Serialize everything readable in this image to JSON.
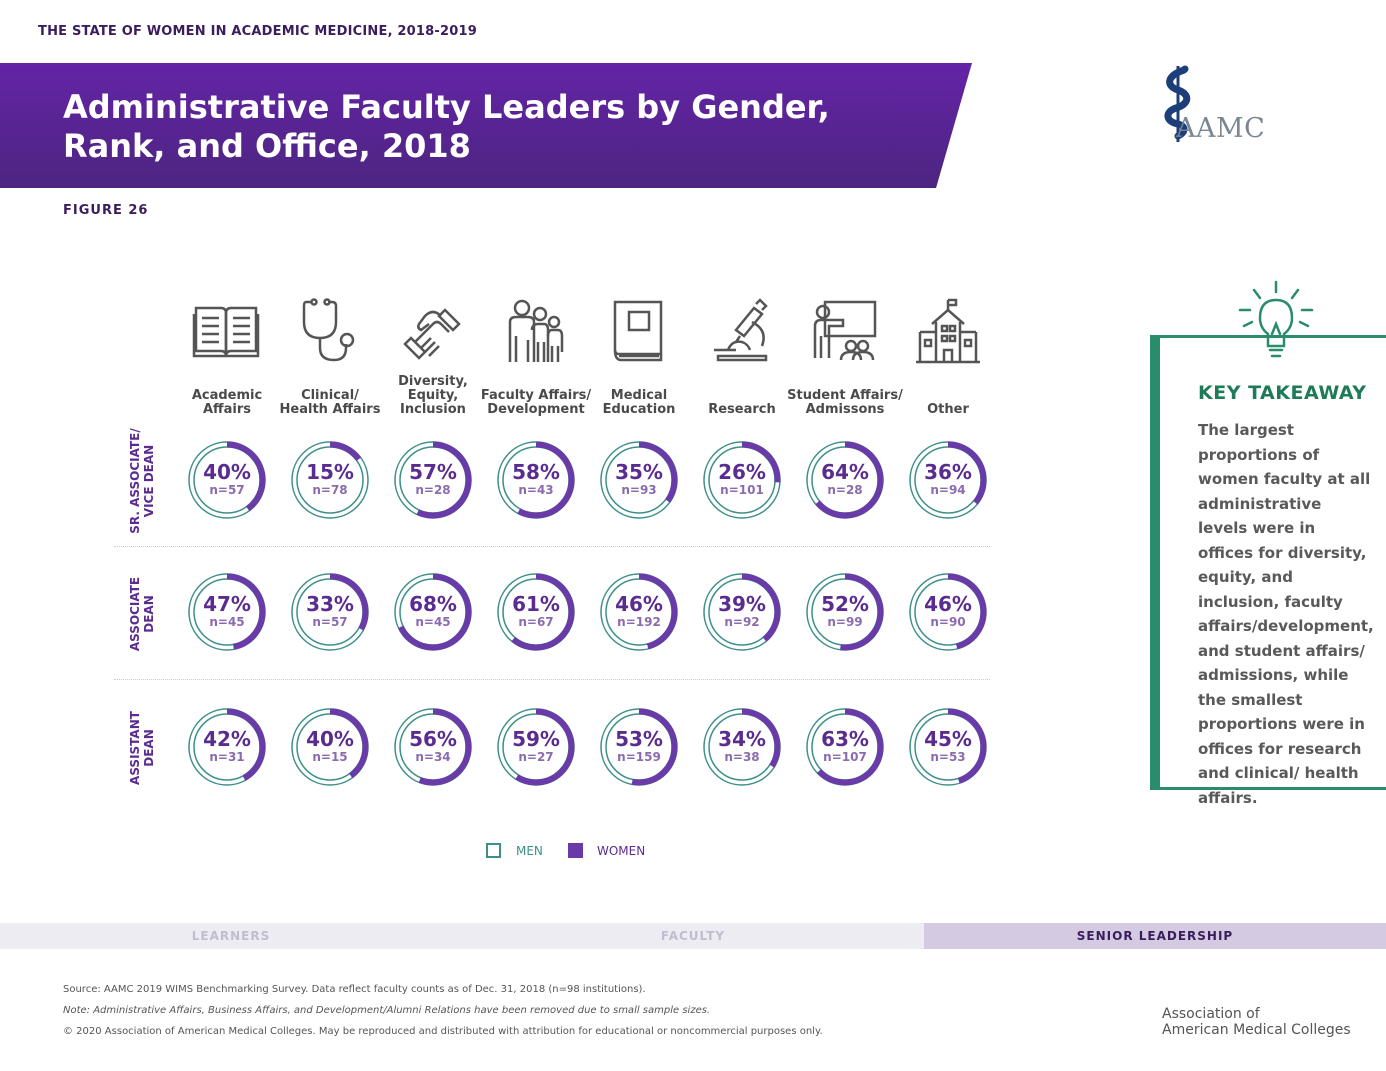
{
  "header": {
    "report_title": "THE STATE OF WOMEN IN ACADEMIC MEDICINE, 2018-2019",
    "banner_title": "Administrative Faculty Leaders by Gender, Rank, and Office, 2018",
    "figure_label": "FIGURE 26",
    "logo_text": "AAMC"
  },
  "colors": {
    "men": "#3e8f8a",
    "women": "#6a3aa8",
    "banner": "#5a24a0",
    "accent_green": "#1e7a57"
  },
  "chart_data": {
    "type": "donut-grid",
    "columns": [
      {
        "label": "Academic\nAffairs",
        "icon": "book-icon"
      },
      {
        "label": "Clinical/\nHealth Affairs",
        "icon": "stethoscope-icon"
      },
      {
        "label": "Diversity,\nEquity,\nInclusion",
        "icon": "handshake-icon"
      },
      {
        "label": "Faculty Affairs/\nDevelopment",
        "icon": "people-group-icon"
      },
      {
        "label": "Medical\nEducation",
        "icon": "textbook-icon"
      },
      {
        "label": "Research",
        "icon": "microscope-icon"
      },
      {
        "label": "Student Affairs/\nAdmissons",
        "icon": "presentation-icon"
      },
      {
        "label": "Other",
        "icon": "building-icon"
      }
    ],
    "rows": [
      {
        "label": "SR. ASSOCIATE/\nVICE DEAN",
        "women_pct": [
          40,
          15,
          57,
          58,
          35,
          26,
          64,
          36
        ],
        "pct_labels": [
          "40%",
          "15%",
          "57%",
          "58%",
          "35%",
          "26%",
          "64%",
          "36%"
        ],
        "n_labels": [
          "n=57",
          "n=78",
          "n=28",
          "n=43",
          "n=93",
          "n=101",
          "n=28",
          "n=94"
        ]
      },
      {
        "label": "ASSOCIATE\nDEAN",
        "women_pct": [
          47,
          33,
          68,
          61,
          46,
          39,
          52,
          46
        ],
        "pct_labels": [
          "47%",
          "33%",
          "68%",
          "61%",
          "46%",
          "39%",
          "52%",
          "46%"
        ],
        "n_labels": [
          "n=45",
          "n=57",
          "n=45",
          "n=67",
          "n=192",
          "n=92",
          "n=99",
          "n=90"
        ]
      },
      {
        "label": "ASSISTANT\nDEAN",
        "women_pct": [
          42,
          40,
          56,
          59,
          53,
          34,
          63,
          45
        ],
        "pct_labels": [
          "42%",
          "40%",
          "56%",
          "59%",
          "53%",
          "34%",
          "63%",
          "45%"
        ],
        "n_labels": [
          "n=31",
          "n=15",
          "n=34",
          "n=27",
          "n=159",
          "n=38",
          "n=107",
          "n=53"
        ]
      }
    ],
    "legend": [
      {
        "label": "MEN",
        "color": "#3e8f8a"
      },
      {
        "label": "WOMEN",
        "color": "#6a3aa8"
      }
    ]
  },
  "takeaway": {
    "title": "KEY TAKEAWAY",
    "body": "The largest proportions of women faculty at all administrative levels were in offices for diversity, equity, and inclusion, faculty affairs/development, and student affairs/ admissions, while the smallest proportions were in offices for research and clinical/ health affairs."
  },
  "nav": {
    "items": [
      "LEARNERS",
      "FACULTY",
      "SENIOR LEADERSHIP"
    ],
    "active": 2
  },
  "footer": {
    "source": "Source: AAMC 2019 WIMS Benchmarking Survey. Data reflect faculty counts as of Dec. 31, 2018 (n=98 institutions).",
    "note": "Note: Administrative Affairs, Business Affairs, and Development/Alumni Relations have been removed due to small sample sizes.",
    "copyright": "© 2020 Association of American Medical Colleges. May be reproduced and distributed with attribution for educational or noncommercial purposes only.",
    "org_name": "Association of\nAmerican Medical Colleges"
  }
}
